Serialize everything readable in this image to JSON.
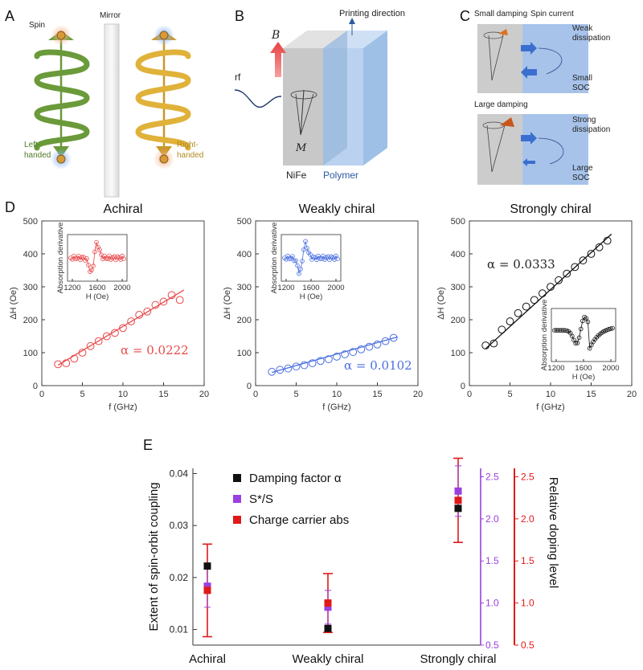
{
  "panels": {
    "A": {
      "label": "A",
      "mirror": "Mirror",
      "spin": "Spin",
      "left_line1": "Left-",
      "left_line2": "handed",
      "right_line1": "Right-",
      "right_line2": "handed"
    },
    "B": {
      "label": "B",
      "field": "B",
      "rf": "rf",
      "magnetization": "M",
      "printing": "Printing direction",
      "nife": "NiFe",
      "polymer": "Polymer"
    },
    "C": {
      "label": "C",
      "small_damping": "Small damping",
      "spin_current": "Spin current",
      "weak_line1": "Weak",
      "weak_line2": "dissipation",
      "small_soc_line1": "Small",
      "small_soc_line2": "SOC",
      "large_damping": "Large damping",
      "strong_line1": "Strong",
      "strong_line2": "dissipation",
      "large_soc_line1": "Large",
      "large_soc_line2": "SOC"
    },
    "D": {
      "label": "D"
    },
    "E": {
      "label": "E"
    }
  },
  "colors": {
    "achiral": "#e8484a",
    "weakly": "#4a6fe0",
    "strongly": "#111111",
    "purple": "#9a40e0",
    "red": "#e01a1a"
  },
  "chart_data": [
    {
      "type": "scatter",
      "title": "Achiral",
      "xlabel": "f (GHz)",
      "ylabel": "ΔH (Oe)",
      "xlim": [
        0,
        20
      ],
      "ylim": [
        0,
        500
      ],
      "xticks": [
        "0",
        "5",
        "10",
        "15",
        "20"
      ],
      "yticks": [
        "0",
        "100",
        "200",
        "300",
        "400",
        "500"
      ],
      "x": [
        2,
        3,
        4,
        5,
        6,
        7,
        8,
        9,
        10,
        11,
        12,
        13,
        14,
        15,
        16,
        17
      ],
      "y": [
        65,
        68,
        82,
        100,
        120,
        135,
        150,
        160,
        175,
        195,
        215,
        225,
        245,
        255,
        275,
        260
      ],
      "fit": [
        [
          2,
          62
        ],
        [
          17.5,
          290
        ]
      ],
      "annotation": "α = 0.0222",
      "inset": {
        "xlabel": "H (Oe)",
        "ylabel": "Absorption derivative",
        "xticks": [
          "1200",
          "1600",
          "2000"
        ]
      }
    },
    {
      "type": "scatter",
      "title": "Weakly chiral",
      "xlabel": "f (GHz)",
      "ylabel": "ΔH (Oe)",
      "xlim": [
        0,
        20
      ],
      "ylim": [
        0,
        500
      ],
      "xticks": [
        "0",
        "5",
        "10",
        "15",
        "20"
      ],
      "yticks": [
        "0",
        "100",
        "200",
        "300",
        "400",
        "500"
      ],
      "x": [
        2,
        3,
        4,
        5,
        6,
        7,
        8,
        9,
        10,
        11,
        12,
        13,
        14,
        15,
        16,
        17
      ],
      "y": [
        42,
        48,
        52,
        58,
        62,
        68,
        75,
        80,
        88,
        95,
        102,
        110,
        118,
        125,
        135,
        145
      ],
      "fit": [
        [
          2,
          40
        ],
        [
          17.5,
          148
        ]
      ],
      "annotation": "α = 0.0102",
      "inset": {
        "xlabel": "H (Oe)",
        "ylabel": "Absorption derivative",
        "xticks": [
          "1200",
          "1600",
          "2000"
        ]
      }
    },
    {
      "type": "scatter",
      "title": "Strongly chiral",
      "xlabel": "f (GHz)",
      "ylabel": "ΔH (Oe)",
      "xlim": [
        0,
        20
      ],
      "ylim": [
        0,
        500
      ],
      "xticks": [
        "0",
        "5",
        "10",
        "15",
        "20"
      ],
      "yticks": [
        "0",
        "100",
        "200",
        "300",
        "400",
        "500"
      ],
      "x": [
        2,
        3,
        4,
        5,
        6,
        7,
        8,
        9,
        10,
        11,
        12,
        13,
        14,
        15,
        16,
        17
      ],
      "y": [
        122,
        128,
        170,
        195,
        220,
        240,
        260,
        280,
        300,
        320,
        340,
        360,
        380,
        400,
        420,
        440
      ],
      "fit": [
        [
          2,
          112
        ],
        [
          17.5,
          460
        ]
      ],
      "annotation": "α = 0.0333",
      "inset": {
        "xlabel": "H (Oe)",
        "ylabel": "Absorption derivative",
        "xticks": [
          "1200",
          "1600",
          "2000"
        ]
      }
    },
    {
      "type": "scatter",
      "categories": [
        "Achiral",
        "Weakly chiral",
        "Strongly chiral"
      ],
      "ylabel_left": "Extent of spin-orbit coupling",
      "ylabel_right": "Relative doping level",
      "ylim_left": [
        0.007,
        0.041
      ],
      "yticks_left": [
        "0.01",
        "0.02",
        "0.03",
        "0.04"
      ],
      "ylim_purple": [
        0.5,
        2.6
      ],
      "yticks_purple": [
        "0.5",
        "1.0",
        "1.5",
        "2.0",
        "2.5"
      ],
      "ylim_red": [
        0.5,
        2.6
      ],
      "yticks_red": [
        "0.5",
        "1.0",
        "1.5",
        "2.0",
        "2.5"
      ],
      "legend": [
        "Damping factor α",
        "S*/S",
        "Charge carrier abs"
      ],
      "series": [
        {
          "name": "Damping factor α",
          "axis": "left",
          "values": [
            0.0222,
            0.0102,
            0.0333
          ]
        },
        {
          "name": "S*/S",
          "axis": "purple",
          "values": [
            1.2,
            0.95,
            2.33
          ],
          "err": [
            0.25,
            0.2,
            0.3
          ]
        },
        {
          "name": "Charge carrier abs",
          "axis": "red",
          "values": [
            1.15,
            1.0,
            2.22
          ],
          "err": [
            0.55,
            0.35,
            0.5
          ]
        }
      ]
    }
  ]
}
